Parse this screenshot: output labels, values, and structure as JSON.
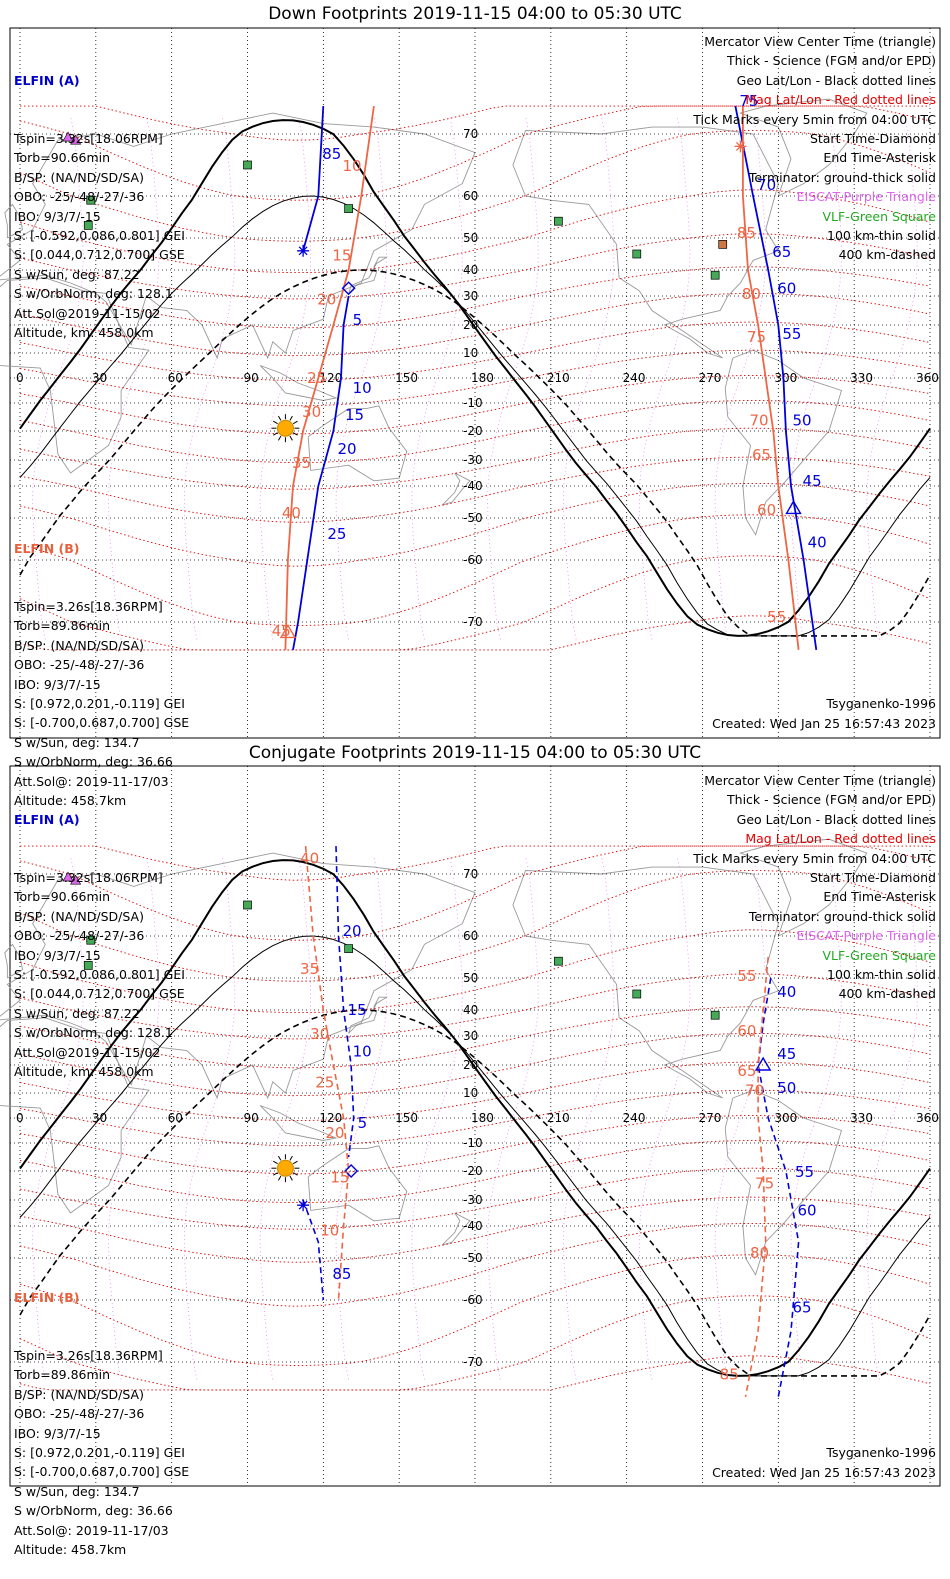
{
  "panels": [
    {
      "title": "Down Footprints 2019-11-15 04:00 to 05:30 UTC",
      "sat_a": {
        "header": "ELFIN (A)",
        "lines": [
          "Tspin=3.32s[18.06RPM]",
          "Torb=90.66min",
          "B/SP: (NA/ND/SD/SA)",
          "OBO: -25/-48/-27/-36",
          "IBO: 9/3/7/-15",
          "S: [-0.592,0.086,0.801] GEI",
          "S: [0.044,0.712,0.700] GSE",
          "S w/Sun, deg: 87.22",
          "S w/OrbNorm, deg: 128.1",
          "Att.Sol@2019-11-15/02",
          "Altitude, km: 458.0km"
        ]
      },
      "sat_b": {
        "header": "ELFIN (B)",
        "lines": [
          "Tspin=3.26s[18.36RPM]",
          "Torb=89.86min",
          "B/SP: (NA/ND/SD/SA)",
          "OBO: -25/-48/-27/-36",
          "IBO: 9/3/7/-15",
          "S: [0.972,0.201,-0.119] GEI",
          "S: [-0.700,0.687,0.700] GSE",
          "S w/Sun, deg: 134.7",
          "S w/OrbNorm, deg: 36.66",
          "Att.Sol@: 2019-11-17/03",
          "Altitude: 458.7km"
        ]
      },
      "legend": [
        "Mercator View Center Time (triangle)",
        "Thick - Science (FGM and/or EPD)",
        "Geo Lat/Lon - Black dotted lines",
        "Mag Lat/Lon - Red dotted lines",
        "Tick Marks every 5min from 04:00 UTC",
        "Start Time-Diamond",
        "End Time-Asterisk",
        "Terminator: ground-thick solid",
        "EISCAT-Purple Triangle",
        "VLF-Green Square",
        "100 km-thin solid",
        "400 km-dashed"
      ],
      "footer_model": "Tsyganenko-1996",
      "footer_created": "Created: Wed Jan 25 16:57:43 2023"
    },
    {
      "title": "Conjugate Footprints 2019-11-15 04:00 to 05:30 UTC",
      "sat_a": {
        "header": "ELFIN (A)",
        "lines": [
          "Tspin=3.32s[18.06RPM]",
          "Torb=90.66min",
          "B/SP: (NA/ND/SD/SA)",
          "OBO: -25/-48/-27/-36",
          "IBO: 9/3/7/-15",
          "S: [-0.592,0.086,0.801] GEI",
          "S: [0.044,0.712,0.700] GSE",
          "S w/Sun, deg: 87.22",
          "S w/OrbNorm, deg: 128.1",
          "Att.Sol@2019-11-15/02",
          "Altitude, km: 458.0km"
        ]
      },
      "sat_b": {
        "header": "ELFIN (B)",
        "lines": [
          "Tspin=3.26s[18.36RPM]",
          "Torb=89.86min",
          "B/SP: (NA/ND/SD/SA)",
          "OBO: -25/-48/-27/-36",
          "IBO: 9/3/7/-15",
          "S: [0.972,0.201,-0.119] GEI",
          "S: [-0.700,0.687,0.700] GSE",
          "S w/Sun, deg: 134.7",
          "S w/OrbNorm, deg: 36.66",
          "Att.Sol@: 2019-11-17/03",
          "Altitude: 458.7km"
        ]
      },
      "legend": [
        "Mercator View Center Time (triangle)",
        "Thick - Science (FGM and/or EPD)",
        "Geo Lat/Lon - Black dotted lines",
        "Mag Lat/Lon - Red dotted lines",
        "Tick Marks every 5min from 04:00 UTC",
        "Start Time-Diamond",
        "End Time-Asterisk",
        "Terminator: ground-thick solid",
        "EISCAT-Purple Triangle",
        "VLF-Green Square",
        "100 km-thin solid",
        "400 km-dashed"
      ],
      "footer_model": "Tsyganenko-1996",
      "footer_created": "Created: Wed Jan 25 16:57:43 2023"
    }
  ],
  "map": {
    "lon_ticks": [
      "0",
      "30",
      "60",
      "90",
      "120",
      "150",
      "180",
      "210",
      "240",
      "270",
      "300",
      "330",
      "360"
    ],
    "lat_ticks": [
      "70",
      "60",
      "50",
      "40",
      "30",
      "20",
      "10",
      "-10",
      "-20",
      "-30",
      "-40",
      "-50",
      "-60",
      "-70"
    ],
    "colors": {
      "elfin_a": "#0000dd",
      "elfin_b": "#ee6644",
      "mag_grid": "#dd0000",
      "geo_grid": "#000000",
      "eiscat": "#dd66ee",
      "vlf": "#44aa55",
      "sun": "#ffaa00"
    }
  },
  "tracks": {
    "down": {
      "a_labels": [
        "85",
        "5",
        "10",
        "15",
        "20",
        "25",
        "75",
        "70",
        "65",
        "60",
        "55",
        "50",
        "45",
        "40"
      ],
      "b_labels": [
        "10",
        "15",
        "20",
        "25",
        "30",
        "35",
        "40",
        "45",
        "85",
        "80",
        "75",
        "70",
        "65",
        "60",
        "55"
      ]
    },
    "conj": {
      "a_labels": [
        "20",
        "15",
        "10",
        "5",
        "85",
        "40",
        "45",
        "50",
        "55",
        "60",
        "65"
      ],
      "b_labels": [
        "40",
        "35",
        "30",
        "25",
        "20",
        "15",
        "10",
        "55",
        "60",
        "65",
        "70",
        "75",
        "80",
        "85"
      ]
    }
  }
}
